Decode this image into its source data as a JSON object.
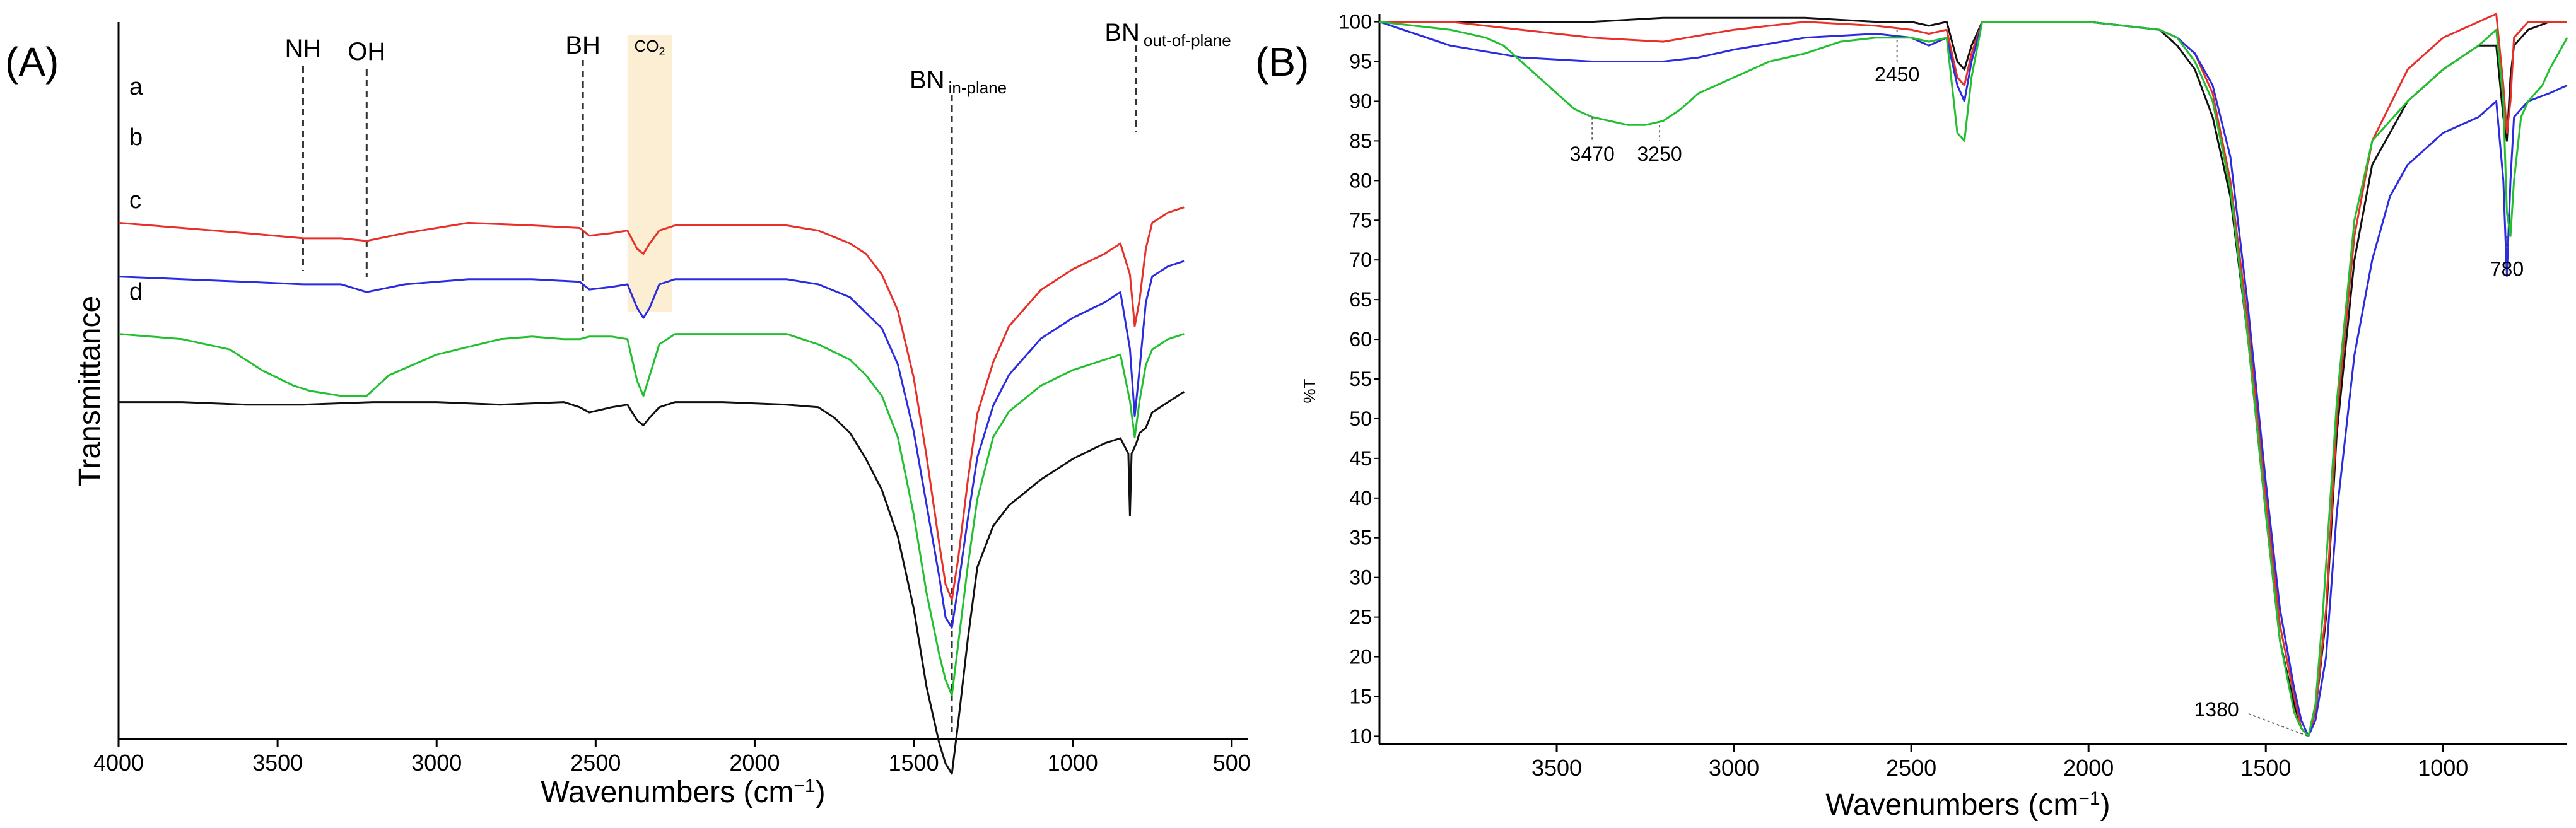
{
  "chart_data": [
    {
      "panel": "(A)",
      "type": "line",
      "xlabel_main": "Wavenumbers (cm",
      "xlabel_sup": "−1",
      "xlabel_end": ")",
      "ylabel": "Transmittance",
      "xlim": [
        4000,
        450
      ],
      "x_ticks": [
        "4000",
        "3500",
        "3000",
        "2500",
        "2000",
        "1500",
        "1000",
        "500"
      ],
      "x_tick_values": [
        4000,
        3500,
        3000,
        2500,
        2000,
        1500,
        1000,
        500
      ],
      "annotations": {
        "NH": {
          "text": "NH",
          "x": 3420
        },
        "OH": {
          "text": "OH",
          "x": 3220
        },
        "BH": {
          "text": "BH",
          "x": 2540
        },
        "CO2": {
          "text": "CO",
          "sub": "2",
          "x_range": [
            2400,
            2260
          ]
        },
        "BN_in": {
          "text": "BN",
          "sub": "in-plane",
          "x": 1380
        },
        "BN_out": {
          "text": "BN",
          "sub": "out-of-plane",
          "x": 800
        }
      },
      "series": [
        {
          "name": "a",
          "color": "#e8302a",
          "offset": 0.28,
          "x": [
            4000,
            3800,
            3600,
            3420,
            3300,
            3220,
            3100,
            2900,
            2700,
            2550,
            2520,
            2450,
            2400,
            2370,
            2350,
            2330,
            2300,
            2250,
            2100,
            1900,
            1800,
            1700,
            1650,
            1600,
            1550,
            1500,
            1460,
            1420,
            1400,
            1380,
            1360,
            1330,
            1300,
            1250,
            1200,
            1100,
            1000,
            900,
            850,
            820,
            805,
            790,
            770,
            750,
            700,
            650
          ],
          "y": [
            0.0,
            0.01,
            0.02,
            0.03,
            0.03,
            0.035,
            0.02,
            0.0,
            0.005,
            0.01,
            0.025,
            0.02,
            0.015,
            0.05,
            0.06,
            0.04,
            0.015,
            0.005,
            0.005,
            0.005,
            0.015,
            0.04,
            0.06,
            0.1,
            0.17,
            0.3,
            0.45,
            0.62,
            0.7,
            0.73,
            0.65,
            0.5,
            0.37,
            0.27,
            0.2,
            0.13,
            0.09,
            0.06,
            0.04,
            0.1,
            0.2,
            0.15,
            0.05,
            0.0,
            -0.02,
            -0.03
          ]
        },
        {
          "name": "b",
          "color": "#2b2be0",
          "offset": 0.355,
          "x": [
            4000,
            3800,
            3600,
            3420,
            3300,
            3220,
            3100,
            2900,
            2700,
            2550,
            2520,
            2450,
            2400,
            2370,
            2350,
            2330,
            2300,
            2250,
            2100,
            1900,
            1800,
            1700,
            1650,
            1600,
            1550,
            1500,
            1460,
            1420,
            1400,
            1380,
            1360,
            1330,
            1300,
            1250,
            1200,
            1100,
            1000,
            900,
            850,
            820,
            805,
            790,
            770,
            750,
            700,
            650
          ],
          "y": [
            0.0,
            0.005,
            0.01,
            0.015,
            0.015,
            0.03,
            0.015,
            0.005,
            0.005,
            0.01,
            0.025,
            0.02,
            0.015,
            0.06,
            0.08,
            0.06,
            0.015,
            0.005,
            0.005,
            0.005,
            0.015,
            0.04,
            0.07,
            0.1,
            0.17,
            0.3,
            0.44,
            0.58,
            0.66,
            0.68,
            0.6,
            0.47,
            0.35,
            0.25,
            0.19,
            0.12,
            0.08,
            0.05,
            0.03,
            0.14,
            0.27,
            0.18,
            0.05,
            0.0,
            -0.02,
            -0.03
          ]
        },
        {
          "name": "c",
          "color": "#22c030",
          "offset": 0.435,
          "x": [
            4000,
            3800,
            3650,
            3550,
            3450,
            3400,
            3300,
            3220,
            3150,
            3000,
            2800,
            2700,
            2600,
            2550,
            2520,
            2450,
            2400,
            2370,
            2350,
            2330,
            2300,
            2250,
            2100,
            1900,
            1800,
            1700,
            1650,
            1600,
            1550,
            1500,
            1460,
            1420,
            1400,
            1380,
            1360,
            1330,
            1300,
            1250,
            1200,
            1100,
            1000,
            900,
            850,
            820,
            805,
            790,
            770,
            750,
            700,
            650
          ],
          "y": [
            0.0,
            0.01,
            0.03,
            0.07,
            0.1,
            0.11,
            0.12,
            0.12,
            0.08,
            0.04,
            0.01,
            0.005,
            0.01,
            0.01,
            0.005,
            0.005,
            0.01,
            0.09,
            0.12,
            0.08,
            0.02,
            0.0,
            0.0,
            0.0,
            0.02,
            0.05,
            0.08,
            0.12,
            0.2,
            0.35,
            0.5,
            0.62,
            0.67,
            0.7,
            0.6,
            0.45,
            0.32,
            0.2,
            0.15,
            0.1,
            0.07,
            0.05,
            0.04,
            0.13,
            0.2,
            0.13,
            0.06,
            0.03,
            0.01,
            0.0
          ]
        },
        {
          "name": "d",
          "color": "#111111",
          "offset": 0.53,
          "x": [
            4000,
            3800,
            3600,
            3420,
            3200,
            3000,
            2800,
            2600,
            2550,
            2520,
            2450,
            2400,
            2370,
            2350,
            2330,
            2300,
            2250,
            2100,
            1900,
            1800,
            1750,
            1700,
            1650,
            1600,
            1550,
            1500,
            1460,
            1420,
            1400,
            1380,
            1360,
            1330,
            1300,
            1250,
            1200,
            1100,
            1000,
            900,
            850,
            825,
            820,
            815,
            800,
            790,
            770,
            750,
            700,
            650
          ],
          "y": [
            0.0,
            0.0,
            0.005,
            0.005,
            0.0,
            0.0,
            0.005,
            0.0,
            0.01,
            0.02,
            0.01,
            0.005,
            0.035,
            0.045,
            0.03,
            0.01,
            0.0,
            0.0,
            0.005,
            0.01,
            0.03,
            0.06,
            0.11,
            0.17,
            0.26,
            0.4,
            0.55,
            0.66,
            0.7,
            0.72,
            0.62,
            0.46,
            0.32,
            0.24,
            0.2,
            0.15,
            0.11,
            0.08,
            0.07,
            0.1,
            0.22,
            0.1,
            0.08,
            0.06,
            0.05,
            0.02,
            0.0,
            -0.02
          ]
        }
      ],
      "curve_labels": [
        "a",
        "b",
        "c",
        "d"
      ]
    },
    {
      "panel": "(B)",
      "type": "line",
      "xlabel_main": "Wavenumbers (cm",
      "xlabel_sup": "−1",
      "xlabel_end": ")",
      "ylabel": "%T",
      "xlim": [
        4000,
        650
      ],
      "ylim": [
        9,
        101
      ],
      "x_ticks": [
        "3500",
        "3000",
        "2500",
        "2000",
        "1500",
        "1000"
      ],
      "x_tick_values": [
        3500,
        3000,
        2500,
        2000,
        1500,
        1000
      ],
      "y_ticks": [
        "10",
        "15",
        "20",
        "25",
        "30",
        "35",
        "40",
        "45",
        "50",
        "55",
        "60",
        "65",
        "70",
        "75",
        "80",
        "85",
        "90",
        "95",
        "100"
      ],
      "y_tick_values": [
        10,
        15,
        20,
        25,
        30,
        35,
        40,
        45,
        50,
        55,
        60,
        65,
        70,
        75,
        80,
        85,
        90,
        95,
        100
      ],
      "annotations": [
        {
          "text": "3470",
          "x": 3400,
          "y_line": [
            88,
            85
          ],
          "label_y": 82.5
        },
        {
          "text": "3250",
          "x": 3210,
          "y_line": [
            87,
            85
          ],
          "label_y": 82.5
        },
        {
          "text": "2450",
          "x": 2540,
          "y_line": [
            99,
            95
          ],
          "label_y": 92.5
        },
        {
          "text": "780",
          "x": 820,
          "y_line": [
            73,
            71
          ],
          "label_y": 68
        },
        {
          "text": "1380",
          "x": 1380,
          "y_line": [
            10,
            13
          ],
          "label_y": 12.5
        }
      ],
      "series": [
        {
          "name": "black",
          "color": "#111111",
          "x": [
            4000,
            3800,
            3600,
            3400,
            3200,
            3000,
            2800,
            2600,
            2500,
            2450,
            2400,
            2370,
            2350,
            2330,
            2300,
            2200,
            2000,
            1900,
            1800,
            1750,
            1700,
            1650,
            1600,
            1550,
            1500,
            1460,
            1420,
            1400,
            1380,
            1360,
            1330,
            1300,
            1250,
            1200,
            1100,
            1000,
            900,
            850,
            830,
            820,
            810,
            800,
            780,
            760,
            700,
            650
          ],
          "y": [
            100,
            100,
            100,
            100,
            100.5,
            100.5,
            100.5,
            100,
            100,
            99.5,
            100,
            95,
            94,
            97,
            100,
            100,
            100,
            99.5,
            99,
            97,
            94,
            88,
            78,
            60,
            38,
            22,
            14,
            11,
            10,
            13,
            25,
            48,
            70,
            82,
            90,
            94,
            97,
            97,
            88,
            85,
            93,
            97,
            98,
            99,
            100,
            100
          ]
        },
        {
          "name": "red",
          "color": "#e8302a",
          "x": [
            4000,
            3800,
            3600,
            3400,
            3200,
            3000,
            2800,
            2600,
            2500,
            2450,
            2400,
            2370,
            2350,
            2330,
            2300,
            2200,
            2000,
            1900,
            1800,
            1750,
            1700,
            1650,
            1600,
            1550,
            1500,
            1460,
            1420,
            1400,
            1380,
            1360,
            1330,
            1300,
            1250,
            1200,
            1100,
            1000,
            900,
            850,
            830,
            820,
            810,
            800,
            780,
            760,
            700,
            650
          ],
          "y": [
            100,
            100,
            99,
            98,
            97.5,
            99,
            100,
            99.5,
            99,
            98.5,
            99,
            93,
            92,
            96,
            100,
            100,
            100,
            99.5,
            99,
            98,
            96,
            91,
            80,
            62,
            40,
            24,
            15,
            11,
            10,
            13,
            26,
            50,
            73,
            85,
            94,
            98,
            100,
            101,
            92,
            86,
            90,
            98,
            99,
            100,
            100,
            100
          ]
        },
        {
          "name": "blue",
          "color": "#2b2be0",
          "x": [
            4000,
            3800,
            3600,
            3400,
            3300,
            3200,
            3100,
            3000,
            2800,
            2600,
            2500,
            2450,
            2400,
            2370,
            2350,
            2330,
            2300,
            2200,
            2000,
            1900,
            1800,
            1750,
            1700,
            1650,
            1600,
            1550,
            1500,
            1460,
            1420,
            1400,
            1380,
            1360,
            1330,
            1300,
            1250,
            1200,
            1150,
            1100,
            1000,
            900,
            850,
            830,
            820,
            810,
            800,
            780,
            760,
            700,
            650
          ],
          "y": [
            100,
            97,
            95.5,
            95,
            95,
            95,
            95.5,
            96.5,
            98,
            98.5,
            98,
            97,
            98,
            92,
            90,
            95,
            100,
            100,
            100,
            99.5,
            99,
            98,
            96,
            92,
            83,
            64,
            42,
            26,
            16,
            12,
            10,
            12,
            20,
            38,
            58,
            70,
            78,
            82,
            86,
            88,
            90,
            80,
            68,
            80,
            88,
            89,
            90,
            91,
            92
          ]
        },
        {
          "name": "green",
          "color": "#22c030",
          "x": [
            4000,
            3800,
            3700,
            3650,
            3600,
            3550,
            3500,
            3450,
            3400,
            3350,
            3300,
            3250,
            3200,
            3150,
            3100,
            3000,
            2900,
            2800,
            2700,
            2600,
            2500,
            2450,
            2400,
            2370,
            2350,
            2330,
            2300,
            2200,
            2000,
            1900,
            1800,
            1750,
            1700,
            1650,
            1600,
            1550,
            1500,
            1460,
            1420,
            1400,
            1380,
            1360,
            1340,
            1300,
            1250,
            1200,
            1100,
            1000,
            900,
            850,
            830,
            820,
            810,
            800,
            780,
            760,
            720,
            700,
            650
          ],
          "y": [
            100,
            99,
            98,
            97,
            95,
            93,
            91,
            89,
            88,
            87.5,
            87,
            87,
            87.5,
            89,
            91,
            93,
            95,
            96,
            97.5,
            98,
            98,
            97.5,
            98,
            86,
            85,
            93,
            100,
            100,
            100,
            99.5,
            99,
            98,
            95,
            90,
            79,
            60,
            38,
            22,
            13,
            11,
            10,
            14,
            25,
            52,
            75,
            85,
            90,
            94,
            97,
            99,
            90,
            76,
            73,
            80,
            88,
            90,
            92,
            94,
            98
          ]
        }
      ]
    }
  ]
}
